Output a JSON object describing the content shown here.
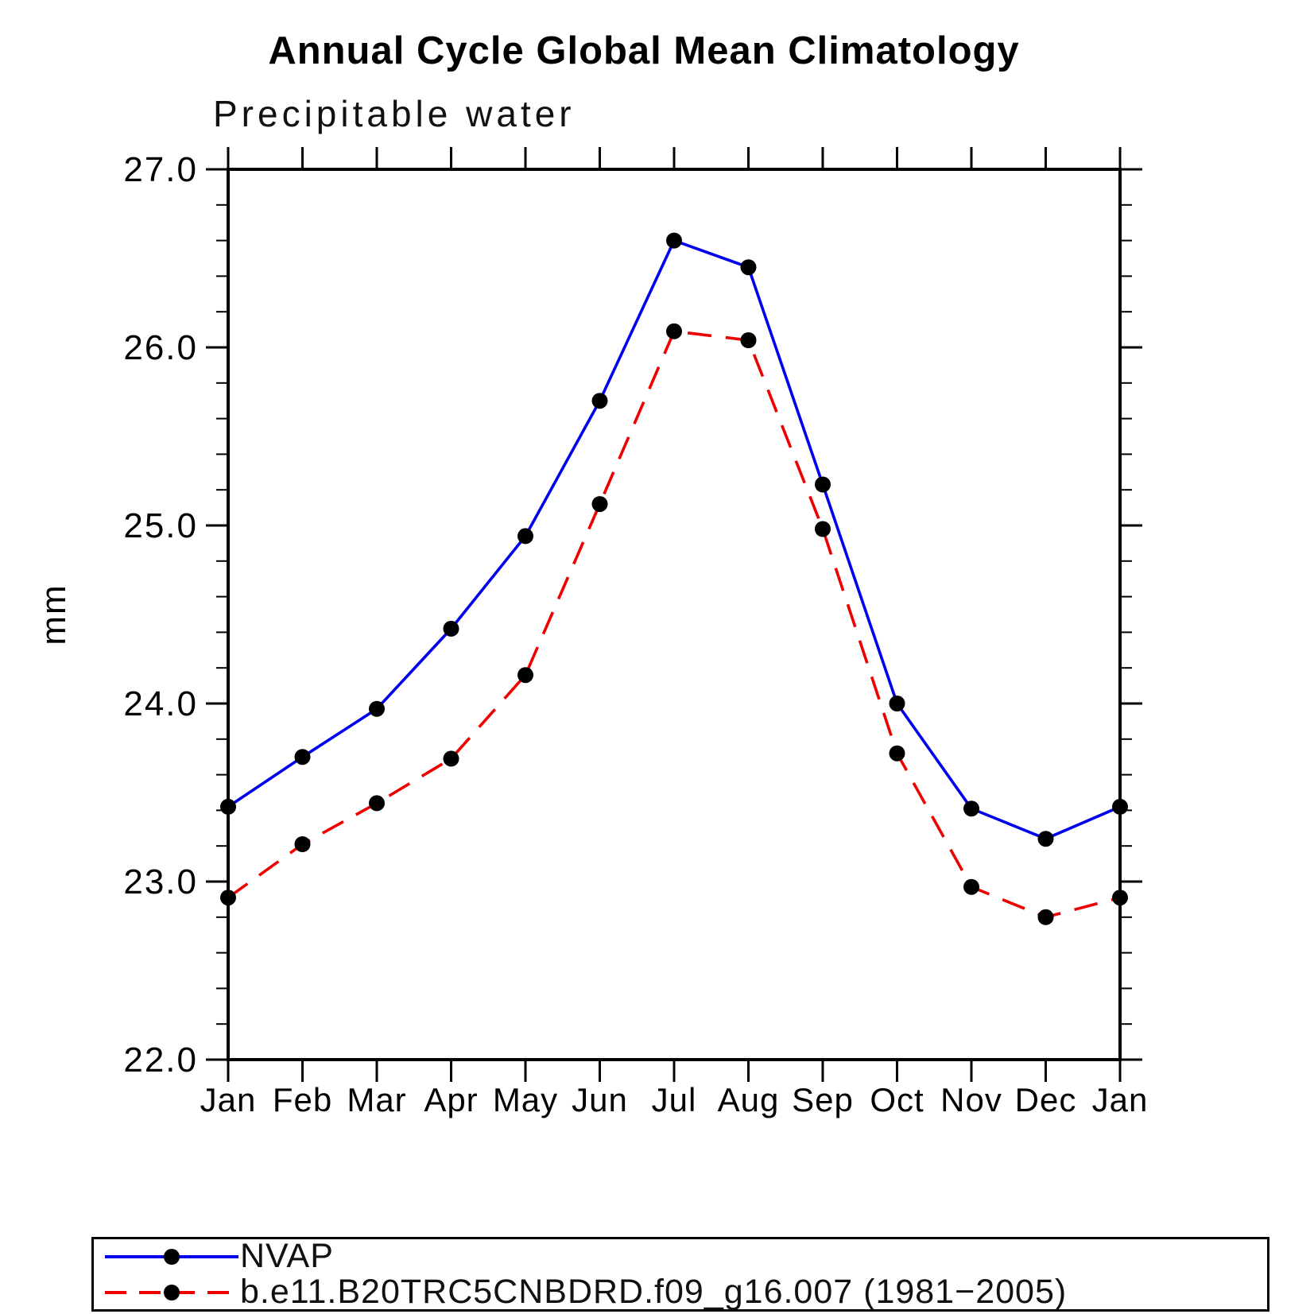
{
  "title": "Annual Cycle Global Mean Climatology",
  "subtitle": "Precipitable water",
  "chart_data": {
    "type": "line",
    "x_categories": [
      "Jan",
      "Feb",
      "Mar",
      "Apr",
      "May",
      "Jun",
      "Jul",
      "Aug",
      "Sep",
      "Oct",
      "Nov",
      "Dec",
      "Jan"
    ],
    "ylabel": "mm",
    "ylim": [
      22.0,
      27.0
    ],
    "ytick_major": [
      22.0,
      23.0,
      24.0,
      25.0,
      26.0,
      27.0
    ],
    "ytick_labels": [
      "22.0",
      "23.0",
      "24.0",
      "25.0",
      "26.0",
      "27.0"
    ],
    "ytick_minor_step": 0.2,
    "grid": false,
    "frame": "box",
    "tick_direction": "out",
    "legend_position": "below-chart",
    "series": [
      {
        "name": "NVAP",
        "color": "#0000ee",
        "line_style": "solid",
        "marker": "circle",
        "marker_color": "#000000",
        "values": [
          23.42,
          23.7,
          23.97,
          24.42,
          24.94,
          25.7,
          26.6,
          26.45,
          25.23,
          24.0,
          23.41,
          23.24,
          23.42
        ]
      },
      {
        "name": "b.e11.B20TRC5CNBDRD.f09_g16.007 (1981−2005)",
        "color": "#ee0000",
        "line_style": "dashed",
        "marker": "circle",
        "marker_color": "#000000",
        "values": [
          22.91,
          23.21,
          23.44,
          23.69,
          24.16,
          25.12,
          26.09,
          26.04,
          24.98,
          23.72,
          22.97,
          22.8,
          22.91
        ]
      }
    ]
  }
}
